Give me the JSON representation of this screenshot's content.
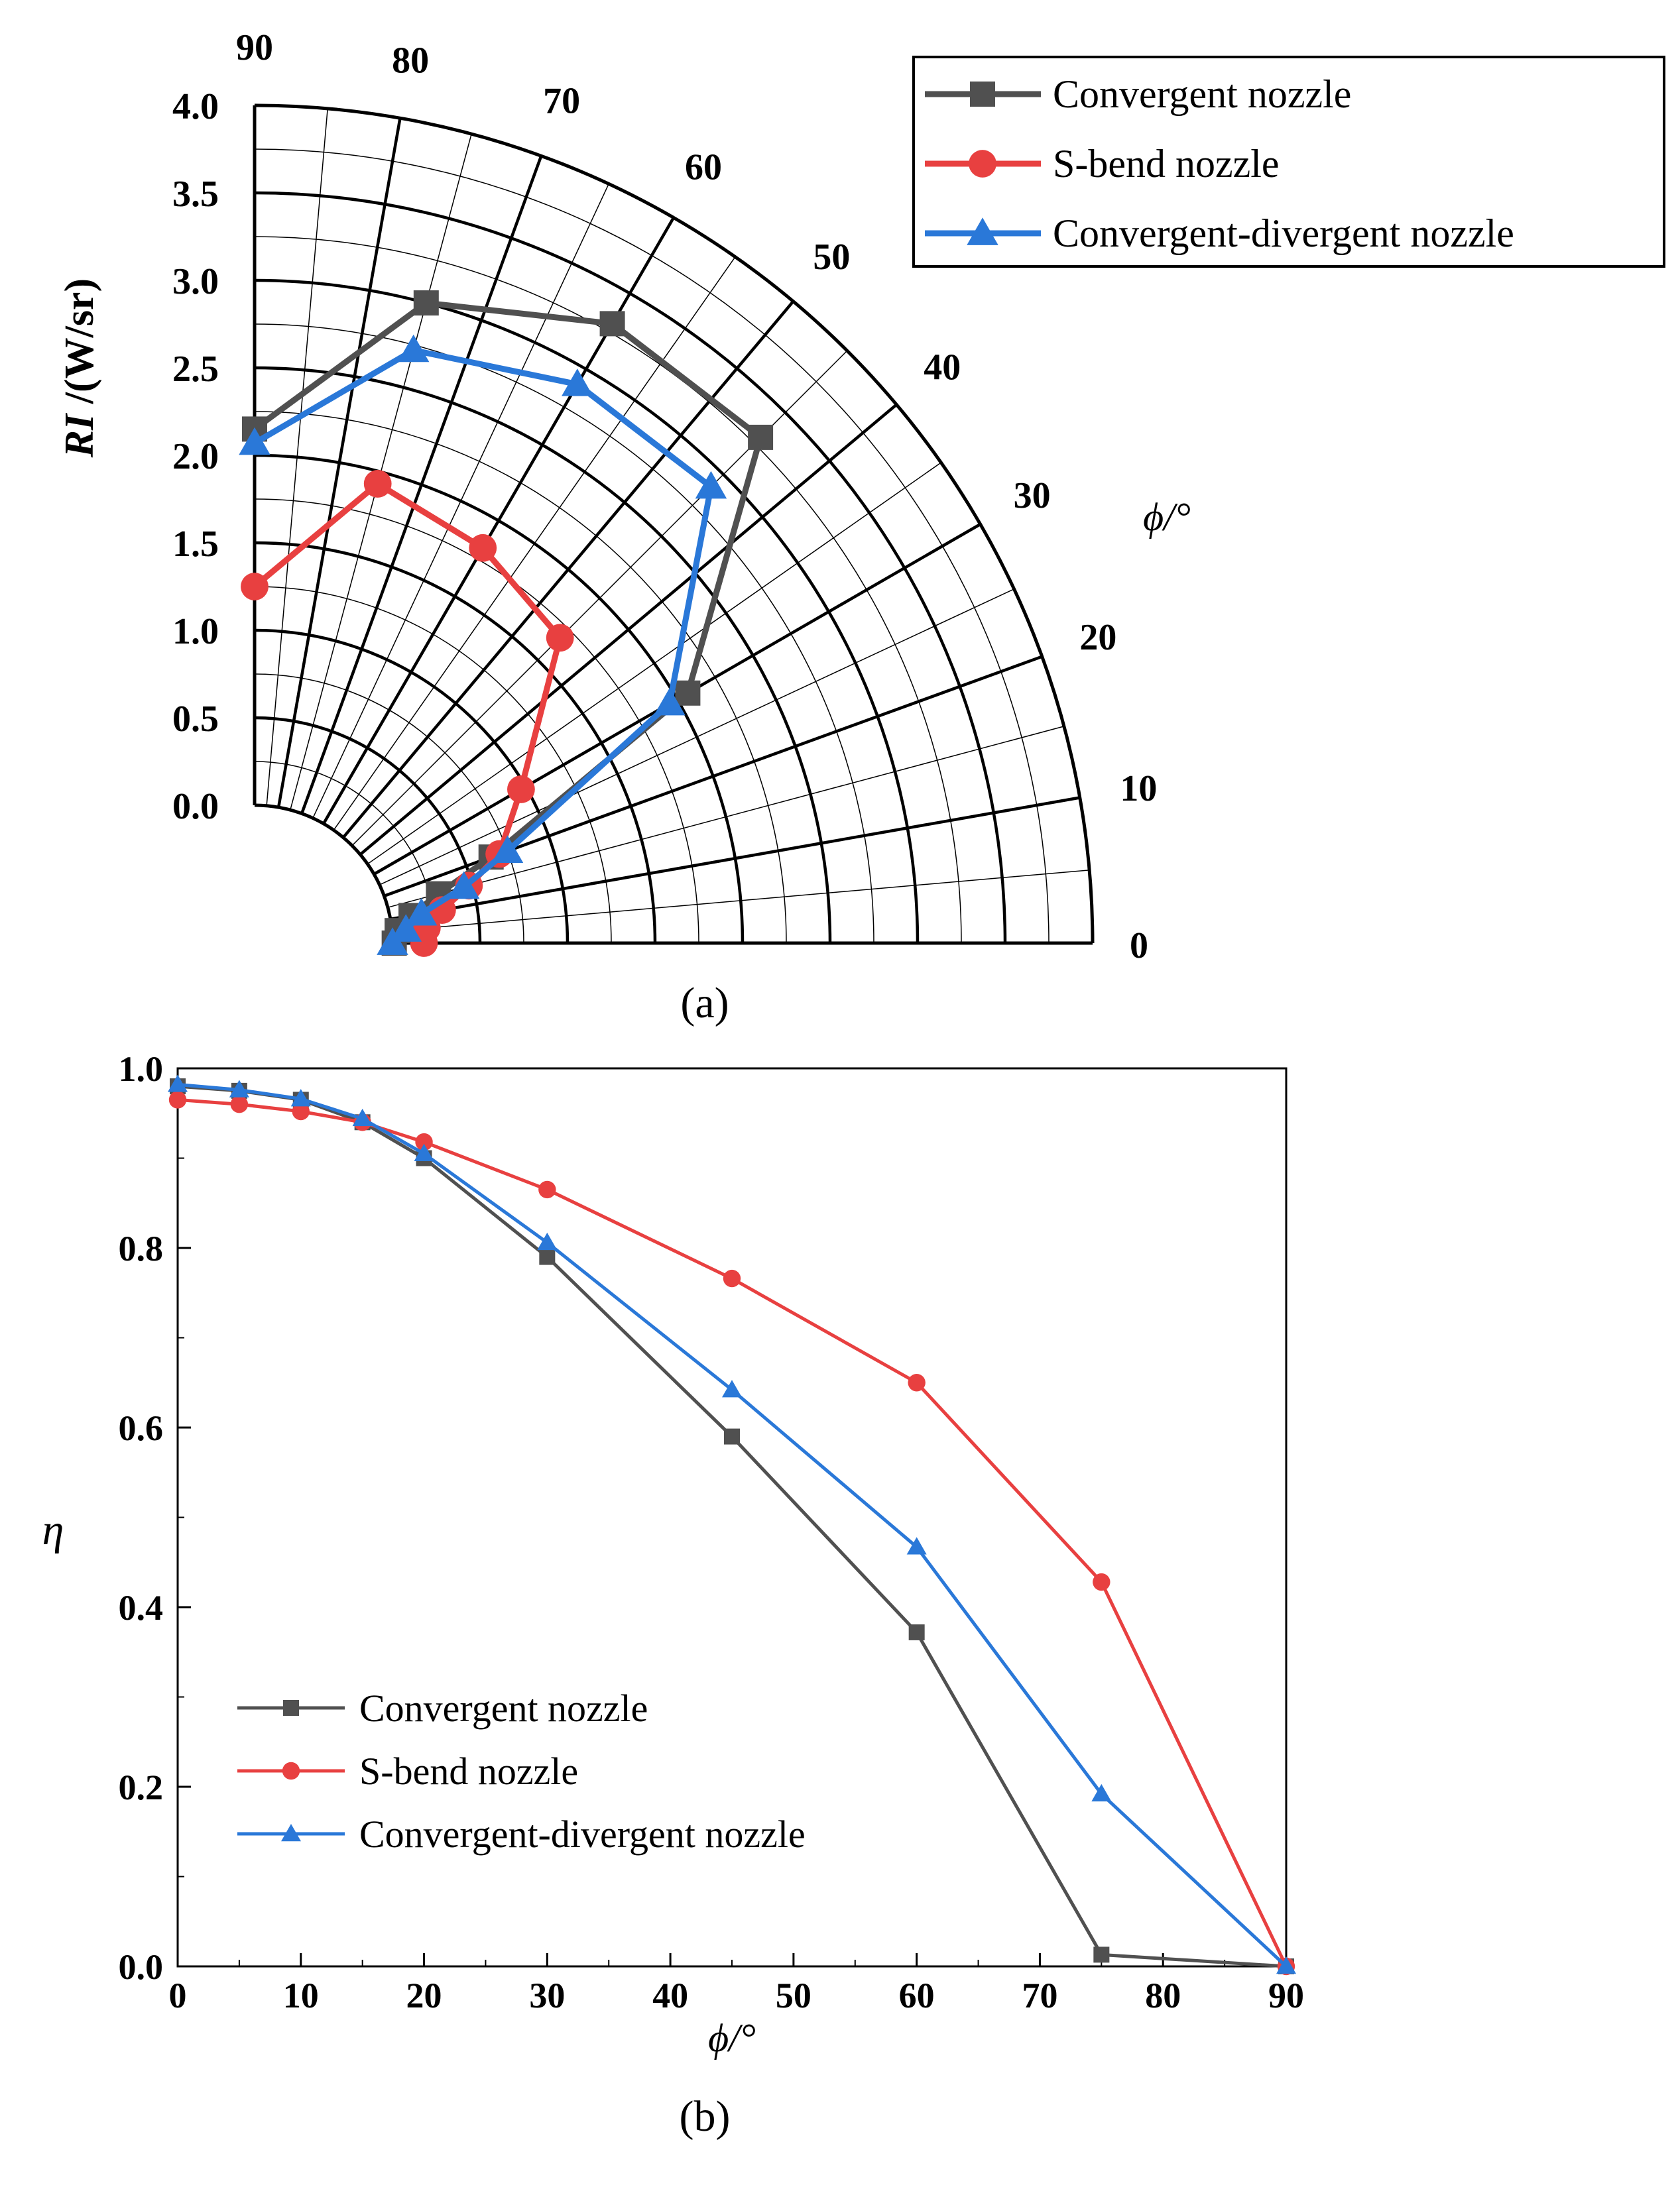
{
  "chart_data": [
    {
      "type": "polar-line",
      "panel_label": "(a)",
      "radial_label": "RI /(W/sr)",
      "radial_label_main": "RI",
      "radial_label_unit": " /(W/sr)",
      "angle_label": "ϕ/°",
      "radial_range": [
        0,
        4.0
      ],
      "radial_ticks": [
        "0.0",
        "0.5",
        "1.0",
        "1.5",
        "2.0",
        "2.5",
        "3.0",
        "3.5",
        "4.0"
      ],
      "angle_range": [
        0,
        90
      ],
      "angle_ticks": [
        "0",
        "10",
        "20",
        "30",
        "40",
        "50",
        "60",
        "70",
        "80",
        "90"
      ],
      "grid": true,
      "legend_position": "top-right",
      "series": [
        {
          "name": "Convergent nozzle",
          "color": "#505050",
          "marker": "square",
          "angles": [
            0,
            5,
            10,
            15,
            20,
            30,
            45,
            60,
            75,
            90
          ],
          "values": [
            0.01,
            0.03,
            0.12,
            0.3,
            0.65,
            2.07,
            3.3,
            3.3,
            3.0,
            2.15
          ]
        },
        {
          "name": "S-bend nozzle",
          "color": "#e84040",
          "marker": "circle",
          "angles": [
            0,
            5,
            10,
            15,
            20,
            30,
            45,
            60,
            75,
            90
          ],
          "values": [
            0.18,
            0.2,
            0.3,
            0.48,
            0.7,
            0.97,
            1.68,
            1.82,
            1.93,
            1.25
          ]
        },
        {
          "name": "Convergent-divergent nozzle",
          "color": "#2a78d8",
          "marker": "triangle",
          "angles": [
            0,
            5,
            10,
            15,
            20,
            30,
            45,
            60,
            75,
            90
          ],
          "values": [
            0.0,
            0.08,
            0.18,
            0.45,
            0.75,
            1.95,
            2.9,
            2.9,
            2.72,
            2.07
          ]
        }
      ]
    },
    {
      "type": "line",
      "panel_label": "(b)",
      "xlabel": "ϕ/°",
      "ylabel": "η",
      "xlim": [
        0,
        90
      ],
      "ylim": [
        0,
        1.0
      ],
      "x_ticks": [
        "0",
        "10",
        "20",
        "30",
        "40",
        "50",
        "60",
        "70",
        "80",
        "90"
      ],
      "y_ticks": [
        "0.0",
        "0.2",
        "0.4",
        "0.6",
        "0.8",
        "1.0"
      ],
      "grid": false,
      "legend_position": "bottom-left",
      "x": [
        0,
        5,
        10,
        15,
        20,
        30,
        45,
        60,
        75,
        90
      ],
      "series": [
        {
          "name": "Convergent nozzle",
          "color": "#505050",
          "marker": "square",
          "values": [
            0.98,
            0.975,
            0.965,
            0.94,
            0.9,
            0.79,
            0.59,
            0.372,
            0.013,
            0.0
          ]
        },
        {
          "name": "S-bend nozzle",
          "color": "#e84040",
          "marker": "circle",
          "values": [
            0.965,
            0.96,
            0.952,
            0.94,
            0.918,
            0.865,
            0.766,
            0.65,
            0.428,
            0.0
          ]
        },
        {
          "name": "Convergent-divergent nozzle",
          "color": "#2a78d8",
          "marker": "triangle",
          "values": [
            0.982,
            0.976,
            0.966,
            0.944,
            0.905,
            0.806,
            0.642,
            0.467,
            0.192,
            0.0
          ]
        }
      ]
    }
  ]
}
